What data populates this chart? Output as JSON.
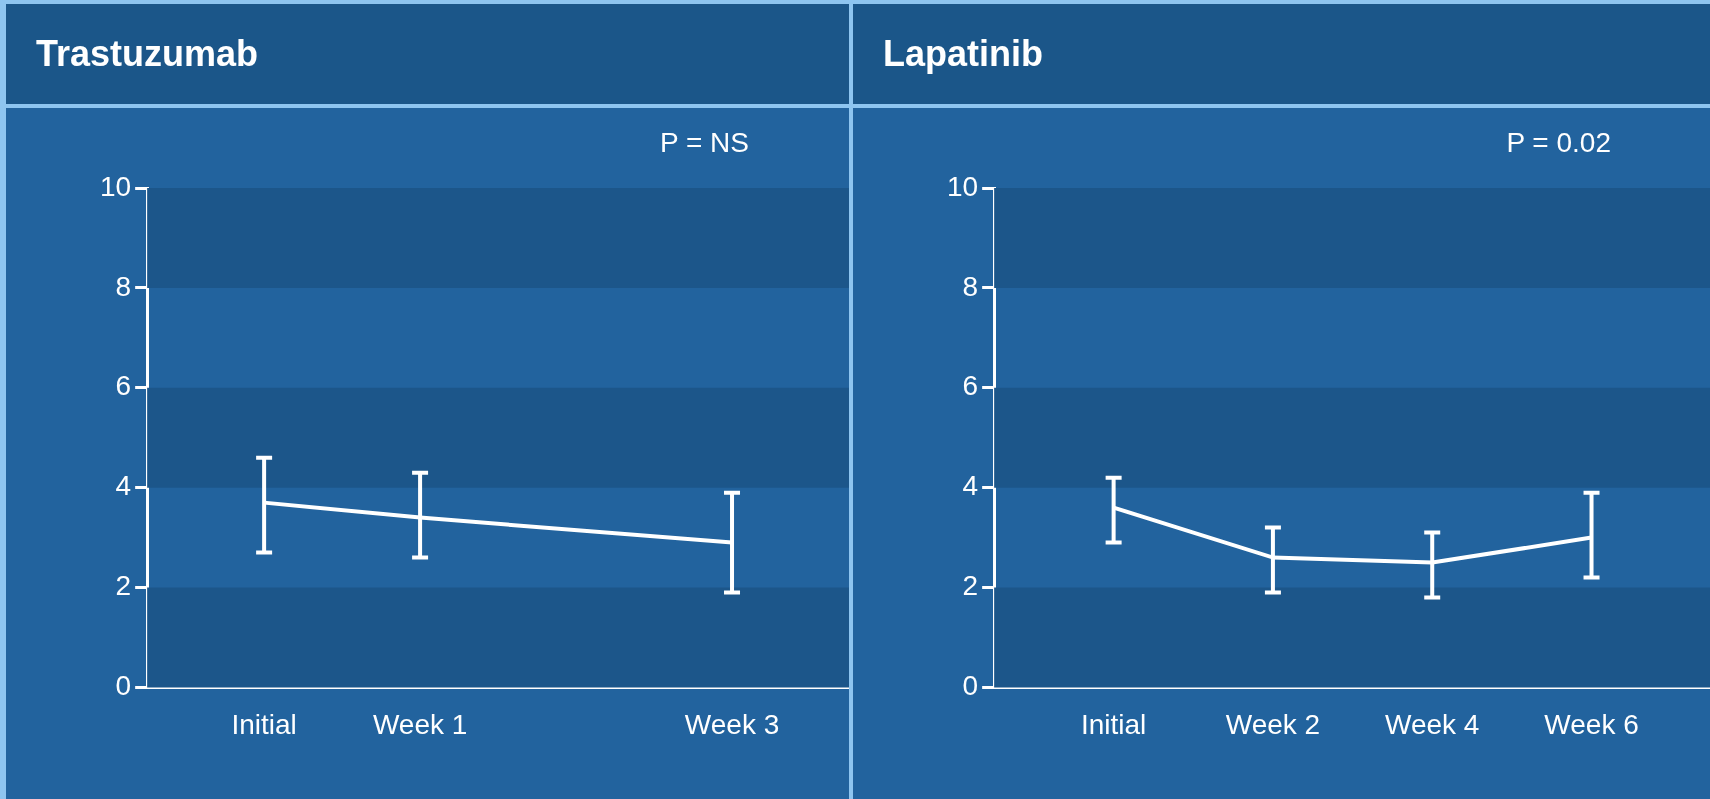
{
  "chart_data": [
    {
      "type": "line",
      "title": "Trastuzumab",
      "annotations": [
        "P = NS"
      ],
      "categories": [
        "Initial",
        "Week 1",
        null,
        "Week 3"
      ],
      "series": [
        {
          "color": "#ffffff",
          "values": [
            3.7,
            3.4,
            null,
            2.9
          ],
          "errors": [
            [
              2.7,
              4.6
            ],
            [
              2.6,
              4.3
            ],
            null,
            [
              1.9,
              3.9
            ]
          ]
        }
      ],
      "ylim": [
        0,
        10
      ],
      "yticks": [
        0,
        2,
        4,
        6,
        8,
        10
      ],
      "legend": false,
      "marker": "none",
      "line_style": "solid",
      "bands": [
        {
          "axis": "y",
          "from": 0,
          "to": 2,
          "color": "#1c568a"
        },
        {
          "axis": "y",
          "from": 4,
          "to": 6,
          "color": "#1c568a"
        },
        {
          "axis": "y",
          "from": 8,
          "to": 10,
          "color": "#1c568a"
        }
      ]
    },
    {
      "type": "line",
      "title": "Lapatinib",
      "annotations": [
        "P = 0.02"
      ],
      "categories": [
        "Initial",
        "Week 2",
        "Week 4",
        "Week 6"
      ],
      "series": [
        {
          "color": "#ffffff",
          "values": [
            3.6,
            2.6,
            2.5,
            3.0
          ],
          "errors": [
            [
              2.9,
              4.2
            ],
            [
              1.9,
              3.2
            ],
            [
              1.8,
              3.1
            ],
            [
              2.2,
              3.9
            ]
          ]
        }
      ],
      "ylim": [
        0,
        10
      ],
      "yticks": [
        0,
        2,
        4,
        6,
        8,
        10
      ],
      "legend": false,
      "marker": "none",
      "line_style": "solid",
      "bands": [
        {
          "axis": "y",
          "from": 0,
          "to": 2,
          "color": "#1c568a"
        },
        {
          "axis": "y",
          "from": 4,
          "to": 6,
          "color": "#1c568a"
        },
        {
          "axis": "y",
          "from": 8,
          "to": 10,
          "color": "#1c568a"
        }
      ]
    }
  ]
}
